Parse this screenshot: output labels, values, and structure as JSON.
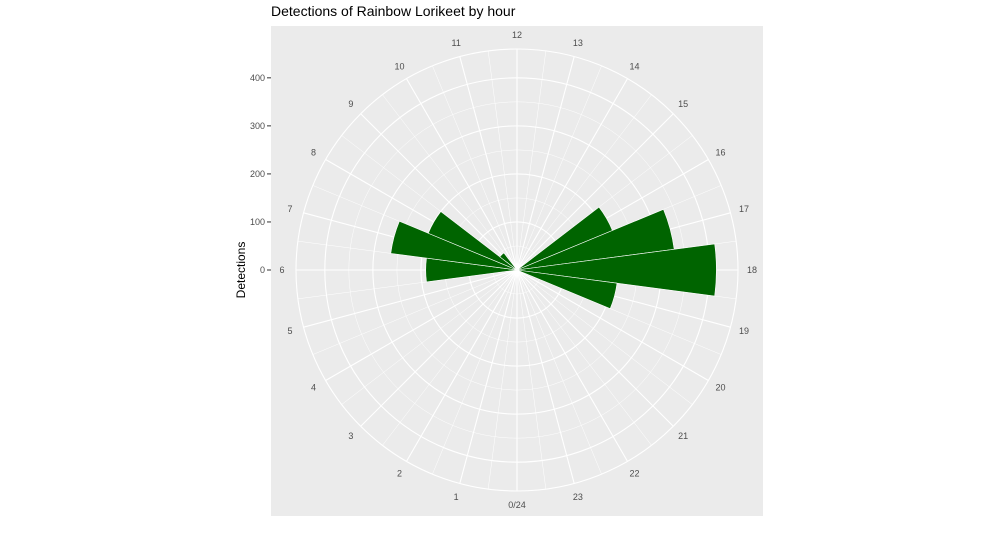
{
  "chart_data": {
    "type": "bar",
    "coord": "polar",
    "title": "Detections of Rainbow Lorikeet by hour",
    "xlabel": "",
    "ylabel": "Detections",
    "categories": [
      "0/24",
      "1",
      "2",
      "3",
      "4",
      "5",
      "6",
      "7",
      "8",
      "9",
      "10",
      "11",
      "12",
      "13",
      "14",
      "15",
      "16",
      "17",
      "18",
      "19",
      "20",
      "21",
      "22",
      "23"
    ],
    "values": [
      0,
      0,
      0,
      0,
      0,
      0,
      190,
      265,
      200,
      45,
      0,
      0,
      0,
      0,
      0,
      0,
      215,
      330,
      415,
      210,
      0,
      0,
      0,
      0
    ],
    "ylim": [
      0,
      460
    ],
    "yticks": [
      0,
      100,
      200,
      300,
      400
    ],
    "yticklabels": [
      "0",
      "100",
      "200",
      "300",
      "400"
    ],
    "grid": true,
    "colors": {
      "bar": "#006400",
      "panel": "#ebebeb",
      "grid": "#ffffff"
    }
  }
}
